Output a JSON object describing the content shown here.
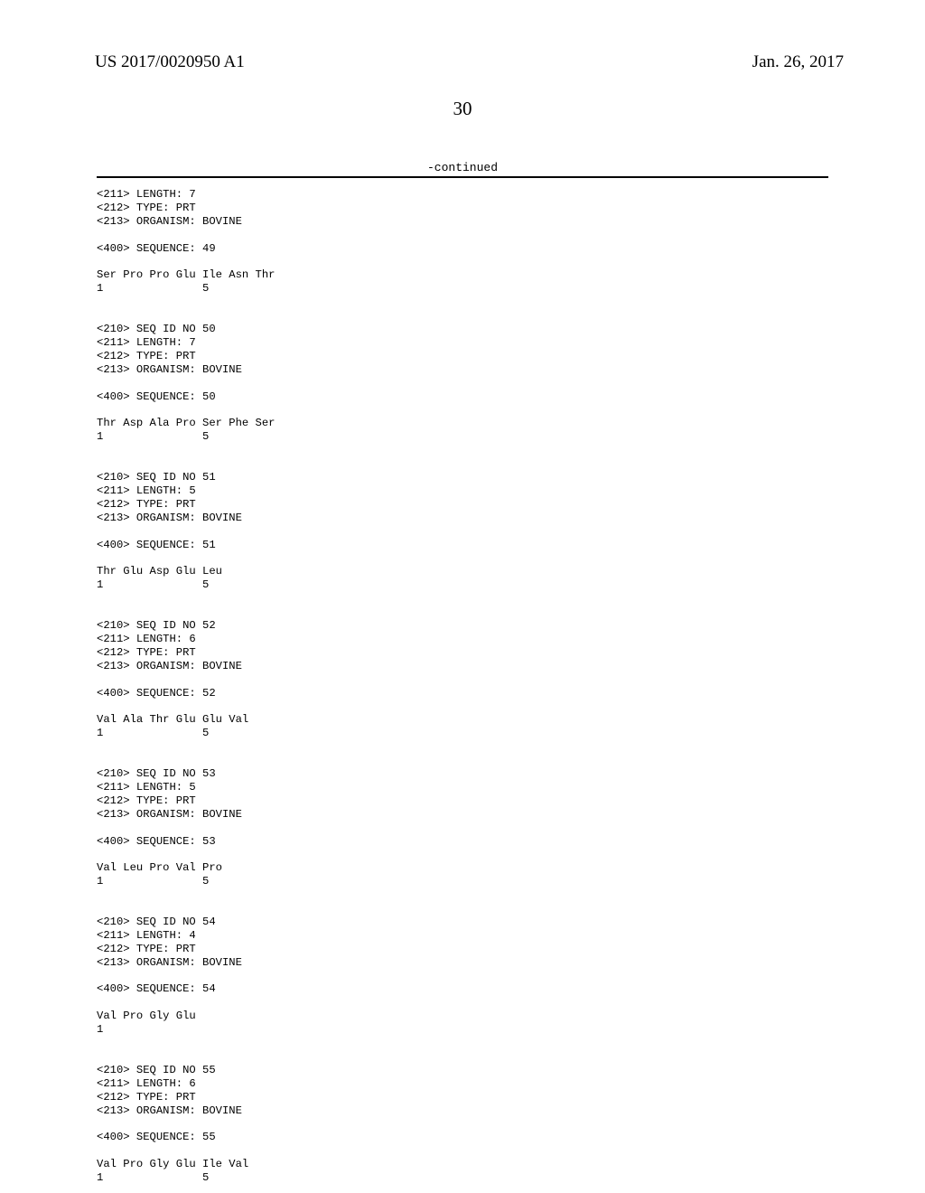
{
  "header": {
    "pubno": "US 2017/0020950 A1",
    "pubdate": "Jan. 26, 2017",
    "pageno": "30",
    "continued": "-continued"
  },
  "listing": "<211> LENGTH: 7\n<212> TYPE: PRT\n<213> ORGANISM: BOVINE\n\n<400> SEQUENCE: 49\n\nSer Pro Pro Glu Ile Asn Thr\n1               5\n\n\n<210> SEQ ID NO 50\n<211> LENGTH: 7\n<212> TYPE: PRT\n<213> ORGANISM: BOVINE\n\n<400> SEQUENCE: 50\n\nThr Asp Ala Pro Ser Phe Ser\n1               5\n\n\n<210> SEQ ID NO 51\n<211> LENGTH: 5\n<212> TYPE: PRT\n<213> ORGANISM: BOVINE\n\n<400> SEQUENCE: 51\n\nThr Glu Asp Glu Leu\n1               5\n\n\n<210> SEQ ID NO 52\n<211> LENGTH: 6\n<212> TYPE: PRT\n<213> ORGANISM: BOVINE\n\n<400> SEQUENCE: 52\n\nVal Ala Thr Glu Glu Val\n1               5\n\n\n<210> SEQ ID NO 53\n<211> LENGTH: 5\n<212> TYPE: PRT\n<213> ORGANISM: BOVINE\n\n<400> SEQUENCE: 53\n\nVal Leu Pro Val Pro\n1               5\n\n\n<210> SEQ ID NO 54\n<211> LENGTH: 4\n<212> TYPE: PRT\n<213> ORGANISM: BOVINE\n\n<400> SEQUENCE: 54\n\nVal Pro Gly Glu\n1\n\n\n<210> SEQ ID NO 55\n<211> LENGTH: 6\n<212> TYPE: PRT\n<213> ORGANISM: BOVINE\n\n<400> SEQUENCE: 55\n\nVal Pro Gly Glu Ile Val\n1               5"
}
